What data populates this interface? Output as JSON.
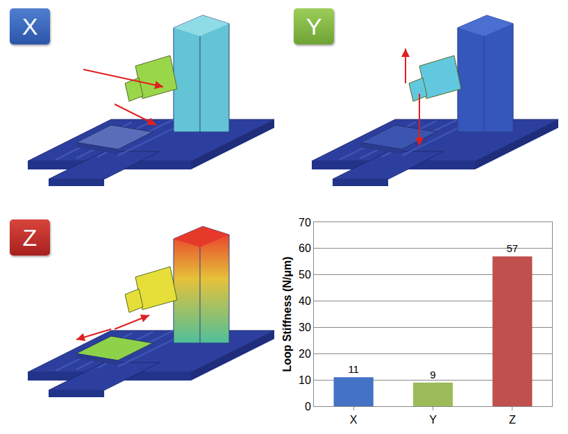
{
  "panel_labels": [
    "X",
    "Y",
    "Z"
  ],
  "chart_data": {
    "type": "bar",
    "categories": [
      "X",
      "Y",
      "Z"
    ],
    "values": [
      11,
      9,
      57
    ],
    "colors": [
      "#4472c4",
      "#9bbb59",
      "#c0504d"
    ],
    "ylabel": "Loop Stiffness (N/μm)",
    "ylim": [
      0,
      70
    ],
    "yticks": [
      0,
      10,
      20,
      30,
      40,
      50,
      60,
      70
    ],
    "grid": true,
    "data_labels": true
  }
}
